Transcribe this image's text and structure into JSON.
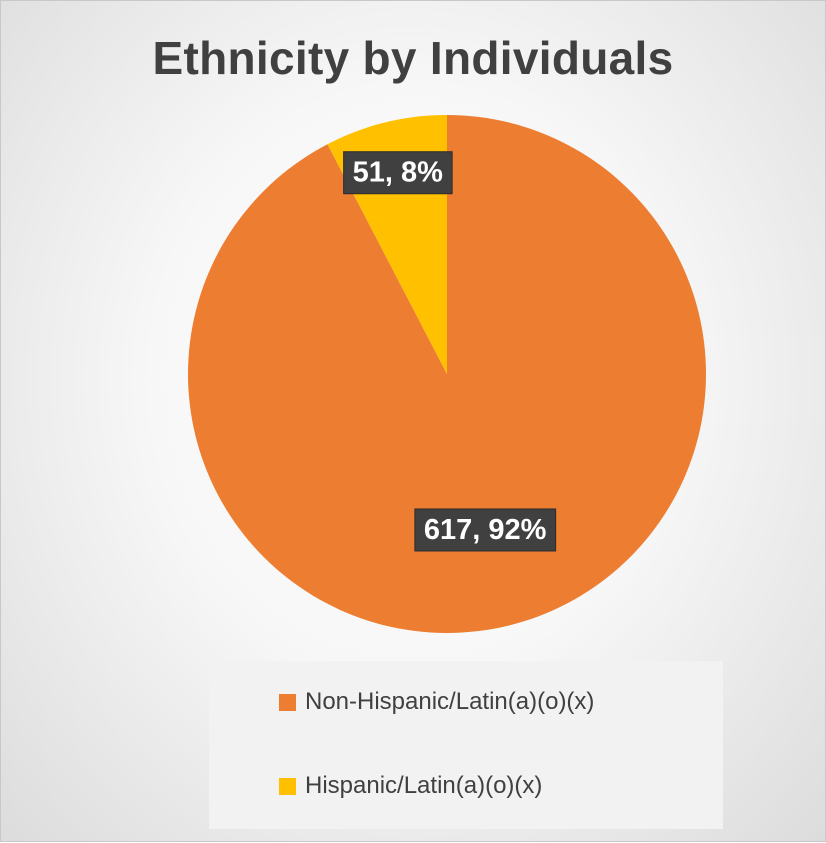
{
  "chart_data": {
    "type": "pie",
    "title": "Ethnicity by Individuals",
    "categories": [
      "Non-Hispanic/Latin(a)(o)(x)",
      "Hispanic/Latin(a)(o)(x)"
    ],
    "values": [
      617,
      51
    ],
    "percentages": [
      92,
      8
    ],
    "data_labels": [
      "617, 92%",
      "51, 8%"
    ],
    "colors": [
      "#ED7D31",
      "#FFC000"
    ],
    "legend_position": "bottom"
  }
}
